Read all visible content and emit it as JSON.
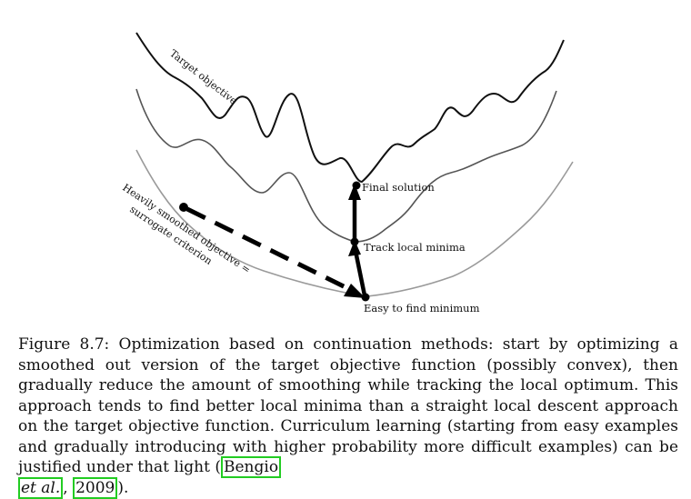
{
  "figure": {
    "labels": {
      "target": "Target objective",
      "heavy_line1": "Heavily smoothed objective =",
      "heavy_line2": "surrogate criterion",
      "final": "Final solution",
      "track": "Track local minima",
      "easy": "Easy to find minimum"
    },
    "colors": {
      "target": "#111111",
      "mid": "#555555",
      "smooth": "#9a9a9a",
      "arrow": "#000000"
    }
  },
  "caption": {
    "fig_label": "Figure 8.7:",
    "text": "Optimization based on continuation methods: start by optimizing a smoothed out version of the target objective function (possibly convex), then gradually reduce the amount of smoothing while tracking the local optimum. This approach tends to find better local minima than a straight local descent approach on the target objective function. Curriculum learning (starting from easy examples and gradually introducing with higher probability more difficult examples) can be justified under that light (",
    "cite_author": "Bengio",
    "cite_etal": "et al.",
    "cite_sep": ",",
    "cite_year": "2009",
    "closing": ")."
  }
}
